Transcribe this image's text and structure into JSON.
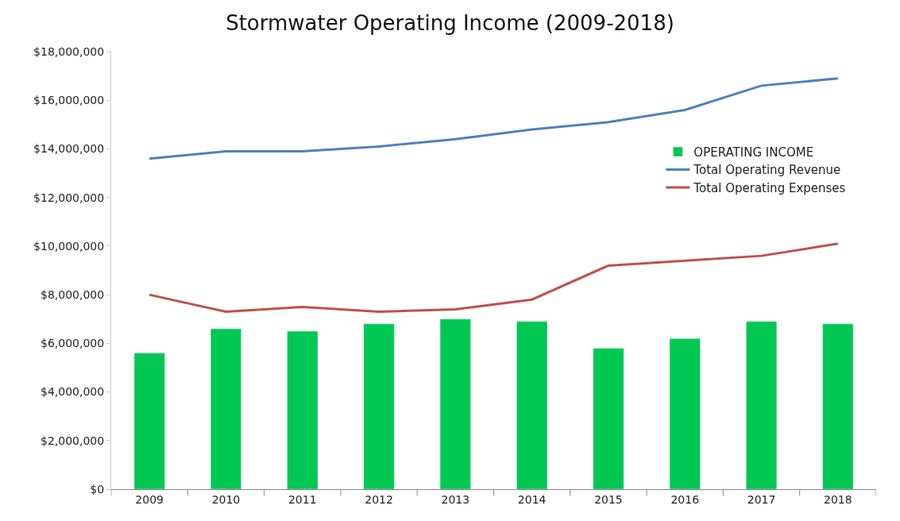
{
  "chart_data": {
    "type": "bar",
    "title": "Stormwater Operating Income (2009-2018)",
    "categories": [
      "2009",
      "2010",
      "2011",
      "2012",
      "2013",
      "2014",
      "2015",
      "2016",
      "2017",
      "2018"
    ],
    "series": [
      {
        "name": "OPERATING INCOME",
        "color": "#00c853",
        "values": [
          5600000,
          6600000,
          6500000,
          6800000,
          7000000,
          6900000,
          5800000,
          6200000,
          6900000,
          6800000
        ]
      },
      {
        "name": "Total Operating Revenue",
        "type": "line",
        "color": "#4f81bd",
        "values": [
          13600000,
          13900000,
          13900000,
          14100000,
          14400000,
          14800000,
          15100000,
          15600000,
          16600000,
          16900000
        ]
      },
      {
        "name": "Total Operating Expenses",
        "type": "line",
        "color": "#c0504d",
        "values": [
          8000000,
          7300000,
          7500000,
          7300000,
          7400000,
          7800000,
          9200000,
          9400000,
          9600000,
          10100000
        ]
      }
    ],
    "ylim": [
      0,
      18000000
    ],
    "yticks": [
      {
        "value": 0,
        "label": "$0"
      },
      {
        "value": 2000000,
        "label": "$2,000,000"
      },
      {
        "value": 4000000,
        "label": "$4,000,000"
      },
      {
        "value": 6000000,
        "label": "$6,000,000"
      },
      {
        "value": 8000000,
        "label": "$8,000,000"
      },
      {
        "value": 10000000,
        "label": "$10,000,000"
      },
      {
        "value": 12000000,
        "label": "$12,000,000"
      },
      {
        "value": 14000000,
        "label": "$14,000,000"
      },
      {
        "value": 16000000,
        "label": "$16,000,000"
      },
      {
        "value": 18000000,
        "label": "$18,000,000"
      }
    ],
    "legend": "right",
    "marker": "none",
    "line_style": "solid"
  }
}
